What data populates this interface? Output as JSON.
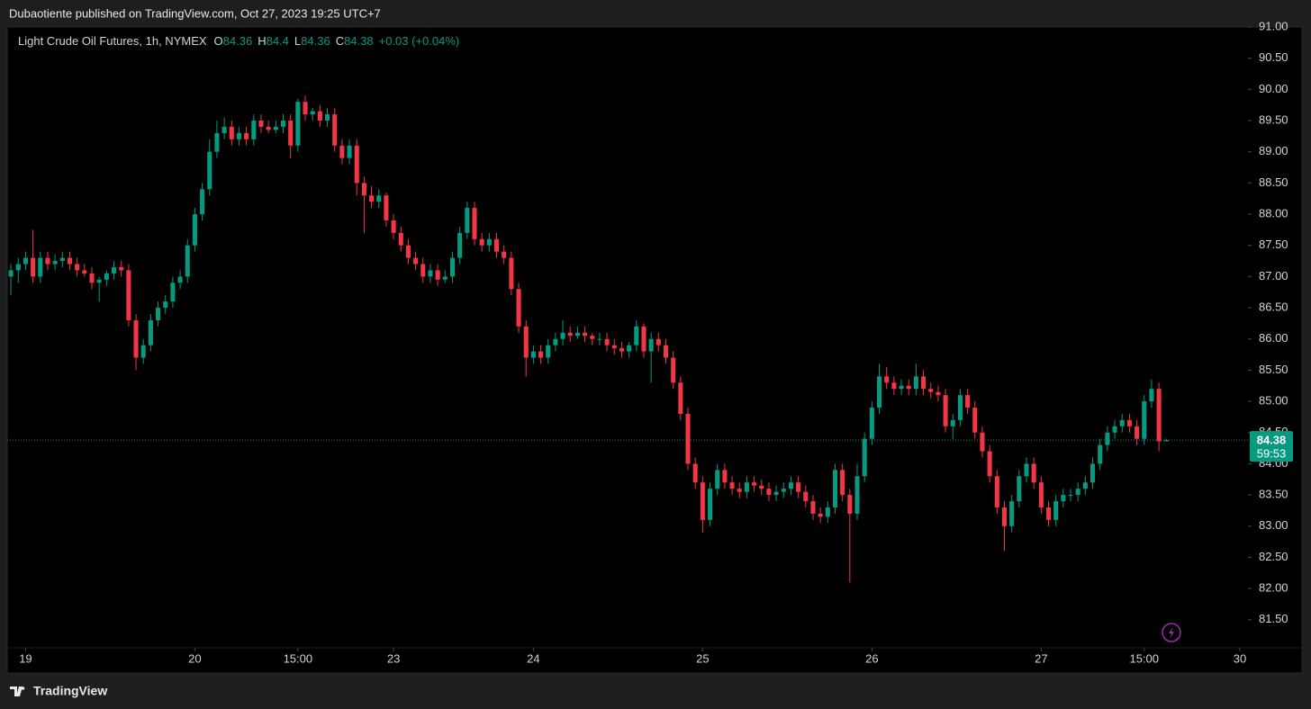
{
  "header": {
    "publisher": "Dubaotiente published on TradingView.com, Oct 27, 2023 19:25 UTC+7"
  },
  "footer": {
    "brand": "TradingView"
  },
  "chart_data": {
    "type": "candlestick",
    "symbol": "Light Crude Oil Futures, 1h, NYMEX",
    "ohlc_labels": [
      "O",
      "H",
      "L",
      "C"
    ],
    "change": "+0.03 (+0.04%)",
    "countdown": "59:53",
    "up_color": "#089981",
    "down_color": "#f23645",
    "xlim": [
      -0.5,
      168.1
    ],
    "xticks": [
      {
        "value": 2,
        "label": "19"
      },
      {
        "value": 25,
        "label": "20"
      },
      {
        "value": 39,
        "label": "15:00"
      },
      {
        "value": 52,
        "label": "23"
      },
      {
        "value": 71,
        "label": "24"
      },
      {
        "value": 94,
        "label": "25"
      },
      {
        "value": 117,
        "label": "26"
      },
      {
        "value": 140,
        "label": "27"
      },
      {
        "value": 154,
        "label": "15:00"
      },
      {
        "value": 167,
        "label": "30"
      }
    ],
    "ylim": [
      81.05,
      91.0
    ],
    "yticks": [
      {
        "value": 81.5,
        "label": "81.50"
      },
      {
        "value": 82,
        "label": "82.00"
      },
      {
        "value": 82.5,
        "label": "82.50"
      },
      {
        "value": 83,
        "label": "83.00"
      },
      {
        "value": 83.5,
        "label": "83.50"
      },
      {
        "value": 84,
        "label": "84.00"
      },
      {
        "value": 84.5,
        "label": "84.50"
      },
      {
        "value": 85,
        "label": "85.00"
      },
      {
        "value": 85.5,
        "label": "85.50"
      },
      {
        "value": 86,
        "label": "86.00"
      },
      {
        "value": 86.5,
        "label": "86.50"
      },
      {
        "value": 87,
        "label": "87.00"
      },
      {
        "value": 87.5,
        "label": "87.50"
      },
      {
        "value": 88,
        "label": "88.00"
      },
      {
        "value": 88.5,
        "label": "88.50"
      },
      {
        "value": 89,
        "label": "89.00"
      },
      {
        "value": 89.5,
        "label": "89.50"
      },
      {
        "value": 90,
        "label": "90.00"
      },
      {
        "value": 90.5,
        "label": "90.50"
      },
      {
        "value": 91,
        "label": "91.00"
      }
    ],
    "open": [
      87.0,
      87.1,
      87.2,
      87.3,
      87.0,
      87.3,
      87.2,
      87.25,
      87.3,
      87.2,
      87.1,
      87.05,
      86.9,
      86.95,
      87.05,
      87.15,
      87.1,
      86.3,
      85.7,
      85.9,
      86.3,
      86.5,
      86.6,
      86.9,
      87.0,
      87.5,
      88.0,
      88.4,
      89.0,
      89.3,
      89.4,
      89.2,
      89.3,
      89.2,
      89.5,
      89.4,
      89.35,
      89.4,
      89.5,
      89.1,
      89.8,
      89.6,
      89.65,
      89.5,
      89.6,
      89.1,
      88.9,
      89.1,
      88.5,
      88.3,
      88.2,
      88.3,
      87.9,
      87.7,
      87.5,
      87.3,
      87.2,
      87.0,
      87.1,
      86.95,
      87.0,
      87.3,
      87.7,
      88.1,
      87.6,
      87.5,
      87.6,
      87.4,
      87.3,
      86.8,
      86.2,
      85.7,
      85.8,
      85.7,
      85.9,
      86.0,
      86.1,
      86.05,
      86.1,
      86.05,
      86.0,
      86.0,
      85.9,
      85.85,
      85.8,
      85.9,
      86.2,
      85.8,
      86.0,
      85.9,
      85.7,
      85.3,
      84.8,
      84.0,
      83.7,
      83.1,
      83.6,
      83.9,
      83.7,
      83.6,
      83.55,
      83.7,
      83.65,
      83.6,
      83.5,
      83.55,
      83.6,
      83.7,
      83.55,
      83.4,
      83.2,
      83.15,
      83.3,
      83.9,
      83.5,
      83.2,
      83.8,
      84.4,
      84.9,
      85.4,
      85.3,
      85.2,
      85.25,
      85.2,
      85.4,
      85.2,
      85.15,
      85.1,
      84.6,
      84.7,
      85.1,
      84.9,
      84.5,
      84.2,
      83.8,
      83.3,
      83.0,
      83.4,
      83.8,
      84.0,
      83.7,
      83.3,
      83.1,
      83.4,
      83.5,
      83.5,
      83.6,
      83.7,
      84.0,
      84.3,
      84.5,
      84.6,
      84.7,
      84.6,
      84.4,
      85.0,
      85.2,
      84.36
    ],
    "high": [
      87.2,
      87.3,
      87.4,
      87.75,
      87.4,
      87.4,
      87.35,
      87.4,
      87.4,
      87.3,
      87.2,
      87.15,
      87.0,
      87.1,
      87.25,
      87.25,
      87.2,
      86.4,
      86.0,
      86.4,
      86.6,
      86.7,
      87.0,
      87.1,
      87.6,
      88.1,
      88.5,
      89.2,
      89.5,
      89.55,
      89.5,
      89.4,
      89.4,
      89.6,
      89.6,
      89.5,
      89.5,
      89.6,
      89.6,
      89.85,
      89.9,
      89.7,
      89.75,
      89.7,
      89.7,
      89.2,
      89.2,
      89.2,
      88.6,
      88.45,
      88.4,
      88.35,
      88.0,
      87.8,
      87.6,
      87.4,
      87.3,
      87.2,
      87.2,
      87.1,
      87.4,
      87.8,
      88.2,
      88.2,
      87.7,
      87.7,
      87.7,
      87.5,
      87.4,
      86.9,
      86.3,
      85.9,
      85.9,
      86.0,
      86.1,
      86.3,
      86.2,
      86.2,
      86.2,
      86.1,
      86.1,
      86.1,
      86.0,
      85.95,
      85.95,
      86.3,
      86.25,
      86.1,
      86.1,
      86.0,
      85.8,
      85.4,
      84.9,
      84.1,
      83.8,
      83.7,
      84.0,
      84.0,
      83.8,
      83.7,
      83.8,
      83.8,
      83.75,
      83.7,
      83.65,
      83.7,
      83.8,
      83.8,
      83.65,
      83.5,
      83.3,
      83.4,
      84.0,
      84.0,
      83.6,
      84.0,
      84.5,
      85.0,
      85.6,
      85.55,
      85.4,
      85.35,
      85.35,
      85.6,
      85.5,
      85.3,
      85.25,
      85.2,
      84.8,
      85.2,
      85.2,
      85.0,
      84.6,
      84.3,
      83.9,
      83.4,
      83.5,
      83.9,
      84.1,
      84.1,
      83.8,
      83.4,
      83.5,
      83.6,
      83.6,
      83.7,
      83.8,
      84.1,
      84.4,
      84.6,
      84.7,
      84.8,
      84.8,
      84.7,
      85.1,
      85.35,
      85.3,
      84.4
    ],
    "low": [
      86.7,
      86.9,
      87.1,
      86.9,
      86.9,
      87.1,
      87.1,
      87.15,
      87.1,
      87.0,
      87.0,
      86.8,
      86.6,
      86.85,
      86.95,
      87.0,
      86.2,
      85.5,
      85.6,
      85.8,
      86.2,
      86.4,
      86.5,
      86.8,
      86.9,
      87.4,
      87.9,
      88.3,
      88.9,
      89.2,
      89.1,
      89.1,
      89.1,
      89.1,
      89.3,
      89.3,
      89.3,
      89.3,
      88.9,
      89.0,
      89.5,
      89.5,
      89.4,
      89.4,
      89.0,
      88.8,
      88.8,
      88.3,
      87.7,
      88.1,
      88.1,
      87.8,
      87.6,
      87.4,
      87.2,
      87.1,
      86.9,
      86.9,
      86.85,
      86.9,
      86.9,
      87.2,
      87.6,
      87.5,
      87.4,
      87.4,
      87.3,
      87.2,
      86.7,
      86.1,
      85.4,
      85.6,
      85.6,
      85.6,
      85.8,
      85.9,
      85.95,
      86.0,
      85.95,
      85.9,
      85.9,
      85.8,
      85.75,
      85.7,
      85.7,
      85.8,
      85.7,
      85.3,
      85.8,
      85.6,
      85.2,
      84.7,
      83.9,
      83.6,
      82.9,
      83.0,
      83.5,
      83.6,
      83.5,
      83.45,
      83.45,
      83.55,
      83.5,
      83.4,
      83.4,
      83.45,
      83.5,
      83.45,
      83.3,
      83.1,
      83.05,
      83.05,
      83.2,
      83.4,
      82.1,
      83.1,
      83.7,
      84.3,
      84.8,
      85.2,
      85.1,
      85.1,
      85.1,
      85.1,
      85.1,
      85.05,
      85.0,
      84.5,
      84.4,
      84.6,
      84.8,
      84.4,
      84.1,
      83.7,
      83.2,
      82.6,
      82.9,
      83.3,
      83.7,
      83.6,
      83.2,
      83.0,
      83.0,
      83.3,
      83.4,
      83.4,
      83.5,
      83.6,
      83.9,
      84.2,
      84.4,
      84.5,
      84.5,
      84.3,
      84.3,
      84.9,
      84.2,
      84.36
    ],
    "close": [
      87.1,
      87.2,
      87.3,
      87.0,
      87.3,
      87.2,
      87.25,
      87.3,
      87.2,
      87.1,
      87.05,
      86.9,
      86.95,
      87.05,
      87.15,
      87.1,
      86.3,
      85.7,
      85.9,
      86.3,
      86.5,
      86.6,
      86.9,
      87.0,
      87.5,
      88.0,
      88.4,
      89.0,
      89.3,
      89.4,
      89.2,
      89.3,
      89.2,
      89.5,
      89.4,
      89.35,
      89.4,
      89.5,
      89.1,
      89.8,
      89.6,
      89.65,
      89.5,
      89.6,
      89.1,
      88.9,
      89.1,
      88.5,
      88.3,
      88.2,
      88.3,
      87.9,
      87.7,
      87.5,
      87.3,
      87.2,
      87.0,
      87.1,
      86.95,
      87.0,
      87.3,
      87.7,
      88.1,
      87.6,
      87.5,
      87.6,
      87.4,
      87.3,
      86.8,
      86.2,
      85.7,
      85.8,
      85.7,
      85.9,
      86.0,
      86.1,
      86.05,
      86.1,
      86.05,
      86.0,
      86.0,
      85.9,
      85.85,
      85.8,
      85.9,
      86.2,
      85.8,
      86.0,
      85.9,
      85.7,
      85.3,
      84.8,
      84.0,
      83.7,
      83.1,
      83.6,
      83.9,
      83.7,
      83.6,
      83.55,
      83.7,
      83.65,
      83.6,
      83.5,
      83.55,
      83.6,
      83.7,
      83.55,
      83.4,
      83.2,
      83.15,
      83.3,
      83.9,
      83.5,
      83.2,
      83.8,
      84.4,
      84.9,
      85.4,
      85.3,
      85.2,
      85.25,
      85.2,
      85.4,
      85.2,
      85.15,
      85.1,
      84.6,
      84.7,
      85.1,
      84.9,
      84.5,
      84.2,
      83.8,
      83.3,
      83.0,
      83.4,
      83.8,
      84.0,
      83.7,
      83.3,
      83.1,
      83.4,
      83.5,
      83.5,
      83.6,
      83.7,
      84.0,
      84.3,
      84.5,
      84.6,
      84.7,
      84.6,
      84.4,
      85.0,
      85.2,
      84.36,
      84.38
    ]
  }
}
